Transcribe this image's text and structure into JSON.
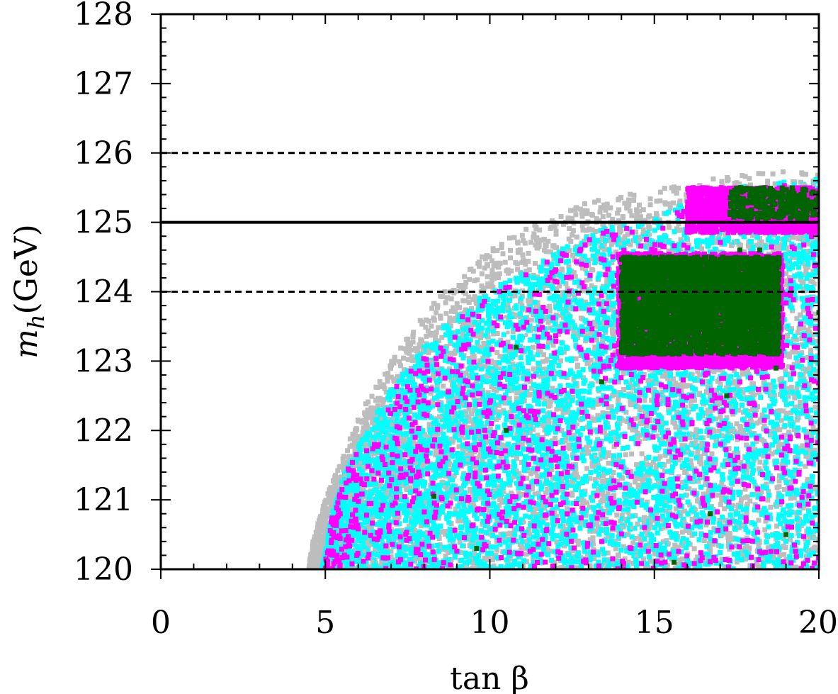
{
  "chart_data": {
    "type": "scatter",
    "title": "",
    "xlabel": "tan β",
    "ylabel_main": "m",
    "ylabel_sub": "h",
    "ylabel_unit": "(GeV)",
    "xlim": [
      0,
      20
    ],
    "ylim": [
      120,
      128
    ],
    "x_ticks": [
      0,
      5,
      10,
      15,
      20
    ],
    "x_tick_labels": [
      "0",
      "5",
      "10",
      "15",
      "20"
    ],
    "y_ticks": [
      120,
      121,
      122,
      123,
      124,
      125,
      126,
      127,
      128
    ],
    "y_tick_labels": [
      "120",
      "121",
      "122",
      "123",
      "124",
      "125",
      "126",
      "127",
      "128"
    ],
    "grid": false,
    "legend": "none",
    "reference_lines": [
      {
        "y": 125,
        "style": "solid"
      },
      {
        "y": 124,
        "style": "dashed"
      },
      {
        "y": 126,
        "style": "dashed"
      }
    ],
    "colors": {
      "gray": "#bdbdbd",
      "cyan": "#00ffff",
      "magenta": "#ff00ff",
      "green": "#006400"
    },
    "regions": {
      "gray_upper_envelope": [
        [
          4.5,
          120.0
        ],
        [
          4.6,
          120.4
        ],
        [
          5.0,
          121.0
        ],
        [
          5.5,
          121.6
        ],
        [
          6.0,
          122.2
        ],
        [
          7.0,
          123.0
        ],
        [
          8.0,
          123.7
        ],
        [
          9.0,
          124.2
        ],
        [
          10.0,
          124.6
        ],
        [
          11.0,
          124.9
        ],
        [
          12.0,
          125.1
        ],
        [
          13.0,
          125.3
        ],
        [
          14.0,
          125.4
        ],
        [
          15.0,
          125.5
        ],
        [
          16.0,
          125.6
        ],
        [
          17.0,
          125.65
        ],
        [
          18.0,
          125.7
        ],
        [
          19.0,
          125.75
        ],
        [
          20.0,
          125.8
        ]
      ],
      "cyan_upper_envelope": [
        [
          4.9,
          120.0
        ],
        [
          5.2,
          120.8
        ],
        [
          5.6,
          121.4
        ],
        [
          6.0,
          121.8
        ],
        [
          7.0,
          122.6
        ],
        [
          8.0,
          123.2
        ],
        [
          9.0,
          123.7
        ],
        [
          10.0,
          124.0
        ],
        [
          11.0,
          124.3
        ],
        [
          12.0,
          124.6
        ],
        [
          13.0,
          124.85
        ],
        [
          14.0,
          125.0
        ],
        [
          15.0,
          125.1
        ],
        [
          16.0,
          125.3
        ],
        [
          17.0,
          125.45
        ],
        [
          18.0,
          125.55
        ],
        [
          19.0,
          125.6
        ],
        [
          20.0,
          125.65
        ]
      ],
      "magenta_dense_boxes": [
        {
          "x": [
            13.9,
            18.9
          ],
          "y": [
            122.9,
            124.55
          ]
        },
        {
          "x": [
            16.0,
            20.0
          ],
          "y": [
            124.85,
            125.5
          ]
        }
      ],
      "green_dense_boxes": [
        {
          "x": [
            14.0,
            18.8
          ],
          "y": [
            123.1,
            124.5
          ]
        },
        {
          "x": [
            17.3,
            20.0
          ],
          "y": [
            125.05,
            125.5
          ]
        }
      ]
    },
    "isolated_green_points": [
      [
        10.8,
        123.2
      ],
      [
        13.4,
        122.7
      ],
      [
        10.5,
        122.0
      ],
      [
        8.3,
        121.05
      ],
      [
        9.6,
        120.3
      ],
      [
        15.6,
        120.1
      ],
      [
        16.7,
        120.8
      ],
      [
        17.2,
        122.5
      ],
      [
        18.7,
        122.9
      ],
      [
        19.0,
        120.5
      ],
      [
        17.6,
        124.6
      ],
      [
        18.2,
        124.6
      ],
      [
        20.0,
        123.7
      ]
    ]
  }
}
